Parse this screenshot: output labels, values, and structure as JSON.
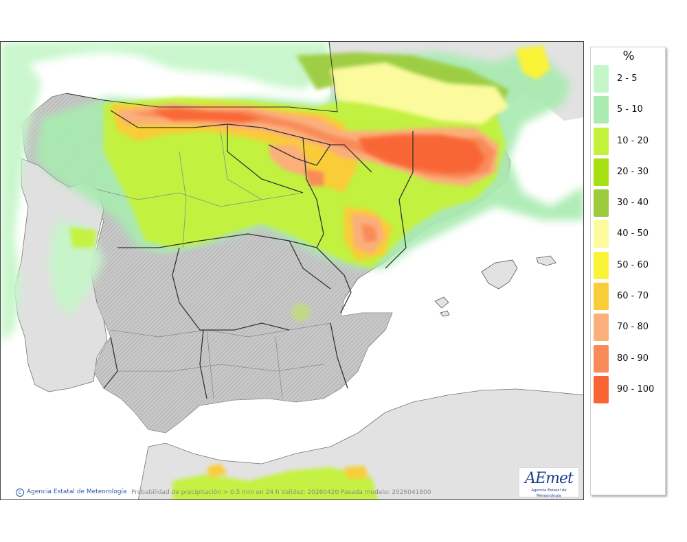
{
  "map": {
    "credit": "Agencia Estatal de Meteorología",
    "credit_symbol": "C",
    "caption": "Probabilidad de precipitación > 0.5 mm en 24 h Validez: 20260420 Pasada modelo: 2026041800",
    "logo_text": "AEmet",
    "logo_subtext": "Agencia Estatal de Meteorología"
  },
  "legend": {
    "unit": "%",
    "classes": [
      {
        "label": "2 - 5",
        "color": "#c5f6c8"
      },
      {
        "label": "5 - 10",
        "color": "#a9ebb0"
      },
      {
        "label": "10 - 20",
        "color": "#c4f23a"
      },
      {
        "label": "20 - 30",
        "color": "#a6e012"
      },
      {
        "label": "30 - 40",
        "color": "#9ccc3c"
      },
      {
        "label": "40 - 50",
        "color": "#fbfa9c"
      },
      {
        "label": "50 - 60",
        "color": "#fbf338"
      },
      {
        "label": "60 - 70",
        "color": "#f9cd38"
      },
      {
        "label": "70 - 80",
        "color": "#fbaf7a"
      },
      {
        "label": "80 - 90",
        "color": "#f98a5a"
      },
      {
        "label": "90 - 100",
        "color": "#f96432"
      }
    ]
  }
}
